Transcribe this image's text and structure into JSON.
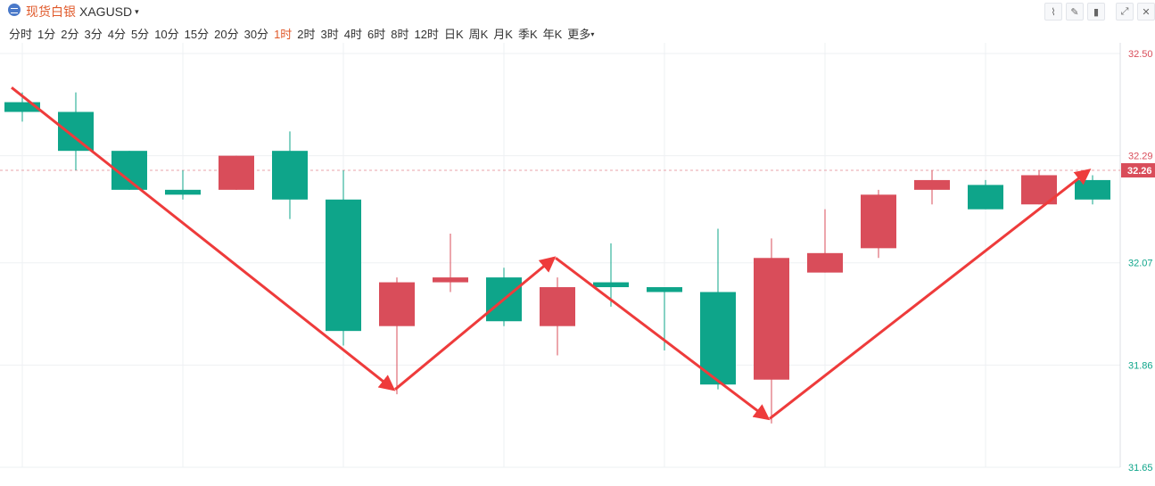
{
  "header": {
    "title": "现货白银",
    "code": "XAGUSD",
    "caret": "▾"
  },
  "periods": [
    {
      "label": "分时",
      "active": false
    },
    {
      "label": "1分",
      "active": false
    },
    {
      "label": "2分",
      "active": false
    },
    {
      "label": "3分",
      "active": false
    },
    {
      "label": "4分",
      "active": false
    },
    {
      "label": "5分",
      "active": false
    },
    {
      "label": "10分",
      "active": false
    },
    {
      "label": "15分",
      "active": false
    },
    {
      "label": "20分",
      "active": false
    },
    {
      "label": "30分",
      "active": false
    },
    {
      "label": "1时",
      "active": true
    },
    {
      "label": "2时",
      "active": false
    },
    {
      "label": "3时",
      "active": false
    },
    {
      "label": "4时",
      "active": false
    },
    {
      "label": "6时",
      "active": false
    },
    {
      "label": "8时",
      "active": false
    },
    {
      "label": "12时",
      "active": false
    },
    {
      "label": "日K",
      "active": false
    },
    {
      "label": "周K",
      "active": false
    },
    {
      "label": "月K",
      "active": false
    },
    {
      "label": "季K",
      "active": false
    },
    {
      "label": "年K",
      "active": false
    },
    {
      "label": "更多",
      "active": false,
      "dropdown": true
    }
  ],
  "tools": [
    {
      "name": "line-tool-icon",
      "glyph": "⌇"
    },
    {
      "name": "draw-tool-icon",
      "glyph": "✎"
    },
    {
      "name": "candle-type-icon",
      "glyph": "▮"
    },
    {
      "name": "fullscreen-icon",
      "glyph": "⤢"
    },
    {
      "name": "close-icon",
      "glyph": "✕"
    }
  ],
  "colors": {
    "up": "#d94d5a",
    "down": "#0ea58a",
    "arrow": "#ee3b3b",
    "grid": "#eef0f3"
  },
  "chart_data": {
    "type": "candlestick",
    "ylim": [
      31.65,
      32.5
    ],
    "yticks": [
      32.5,
      32.29,
      32.07,
      31.86,
      31.65
    ],
    "ytick_labels": [
      "32.50",
      "32.29",
      "32.07",
      "31.86",
      "31.65"
    ],
    "current_price": 32.26,
    "current_price_label": "32.26",
    "candles": [
      {
        "o": 32.4,
        "h": 32.42,
        "l": 32.36,
        "c": 32.38
      },
      {
        "o": 32.38,
        "h": 32.42,
        "l": 32.26,
        "c": 32.3
      },
      {
        "o": 32.3,
        "h": 32.3,
        "l": 32.22,
        "c": 32.22
      },
      {
        "o": 32.22,
        "h": 32.26,
        "l": 32.2,
        "c": 32.21
      },
      {
        "o": 32.22,
        "h": 32.29,
        "l": 32.22,
        "c": 32.29
      },
      {
        "o": 32.3,
        "h": 32.34,
        "l": 32.16,
        "c": 32.2
      },
      {
        "o": 32.2,
        "h": 32.26,
        "l": 31.9,
        "c": 31.93
      },
      {
        "o": 31.94,
        "h": 32.04,
        "l": 31.8,
        "c": 32.03
      },
      {
        "o": 32.03,
        "h": 32.13,
        "l": 32.01,
        "c": 32.04
      },
      {
        "o": 32.04,
        "h": 32.06,
        "l": 31.94,
        "c": 31.95
      },
      {
        "o": 31.94,
        "h": 32.04,
        "l": 31.88,
        "c": 32.02
      },
      {
        "o": 32.03,
        "h": 32.11,
        "l": 31.98,
        "c": 32.02
      },
      {
        "o": 32.02,
        "h": 32.02,
        "l": 31.89,
        "c": 32.01
      },
      {
        "o": 32.01,
        "h": 32.14,
        "l": 31.81,
        "c": 31.82
      },
      {
        "o": 31.83,
        "h": 32.12,
        "l": 31.74,
        "c": 32.08
      },
      {
        "o": 32.05,
        "h": 32.18,
        "l": 32.05,
        "c": 32.09
      },
      {
        "o": 32.1,
        "h": 32.22,
        "l": 32.08,
        "c": 32.21
      },
      {
        "o": 32.22,
        "h": 32.26,
        "l": 32.19,
        "c": 32.24
      },
      {
        "o": 32.23,
        "h": 32.24,
        "l": 32.18,
        "c": 32.18
      },
      {
        "o": 32.19,
        "h": 32.26,
        "l": 32.19,
        "c": 32.25
      },
      {
        "o": 32.24,
        "h": 32.25,
        "l": 32.19,
        "c": 32.2
      }
    ],
    "annotations": [
      {
        "from": [
          0,
          32.43
        ],
        "to": [
          7,
          31.81
        ],
        "weight": "thick"
      },
      {
        "from": [
          7,
          31.81
        ],
        "to": [
          10,
          32.08
        ],
        "weight": "thick"
      },
      {
        "from": [
          10,
          32.08
        ],
        "to": [
          14,
          31.75
        ],
        "weight": "thick"
      },
      {
        "from": [
          14,
          31.75
        ],
        "to": [
          20,
          32.26
        ],
        "weight": "thick"
      }
    ]
  }
}
